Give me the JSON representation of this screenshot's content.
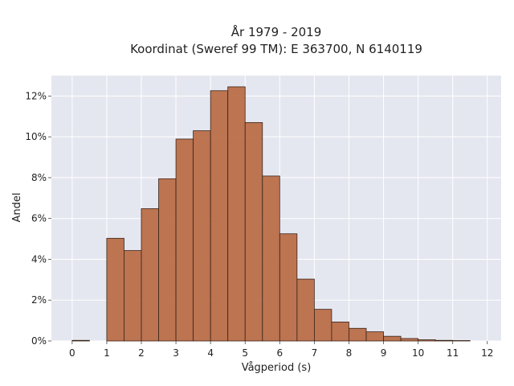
{
  "chart_data": {
    "type": "bar",
    "title_line1": "År 1979 - 2019",
    "title_line2": "Koordinat (Sweref 99 TM): E 363700, N 6140119",
    "xlabel": "Vågperiod (s)",
    "ylabel": "Andel",
    "xlim": [
      -0.6,
      12.4
    ],
    "ylim": [
      0,
      0.13
    ],
    "bin_width": 0.5,
    "bins": [
      {
        "x0": 0.0,
        "value": 0.0003
      },
      {
        "x0": 0.5,
        "value": 0.0
      },
      {
        "x0": 1.0,
        "value": 0.0503
      },
      {
        "x0": 1.5,
        "value": 0.0443
      },
      {
        "x0": 2.0,
        "value": 0.0648
      },
      {
        "x0": 2.5,
        "value": 0.0795
      },
      {
        "x0": 3.0,
        "value": 0.0989
      },
      {
        "x0": 3.5,
        "value": 0.103
      },
      {
        "x0": 4.0,
        "value": 0.1226
      },
      {
        "x0": 4.5,
        "value": 0.1245
      },
      {
        "x0": 5.0,
        "value": 0.107
      },
      {
        "x0": 5.5,
        "value": 0.0808
      },
      {
        "x0": 6.0,
        "value": 0.0525
      },
      {
        "x0": 6.5,
        "value": 0.0303
      },
      {
        "x0": 7.0,
        "value": 0.0155
      },
      {
        "x0": 7.5,
        "value": 0.0093
      },
      {
        "x0": 8.0,
        "value": 0.0062
      },
      {
        "x0": 8.5,
        "value": 0.0045
      },
      {
        "x0": 9.0,
        "value": 0.0023
      },
      {
        "x0": 9.5,
        "value": 0.0012
      },
      {
        "x0": 10.0,
        "value": 0.0006
      },
      {
        "x0": 10.5,
        "value": 0.0003
      },
      {
        "x0": 11.0,
        "value": 0.0002
      },
      {
        "x0": 11.5,
        "value": 0.0
      }
    ],
    "x_ticks": [
      0,
      1,
      2,
      3,
      4,
      5,
      6,
      7,
      8,
      9,
      10,
      11,
      12
    ],
    "x_tick_labels": [
      "0",
      "1",
      "2",
      "3",
      "4",
      "5",
      "6",
      "7",
      "8",
      "9",
      "10",
      "11",
      "12"
    ],
    "y_ticks": [
      0,
      0.02,
      0.04,
      0.06,
      0.08,
      0.1,
      0.12
    ],
    "y_tick_labels": [
      "0%",
      "2%",
      "4%",
      "6%",
      "8%",
      "10%",
      "12%"
    ],
    "grid": true,
    "colors": {
      "bar_fill": "#b86a43",
      "bar_edge": "#3a2418",
      "plot_background": "#e5e7f0",
      "grid": "#ffffff"
    }
  }
}
